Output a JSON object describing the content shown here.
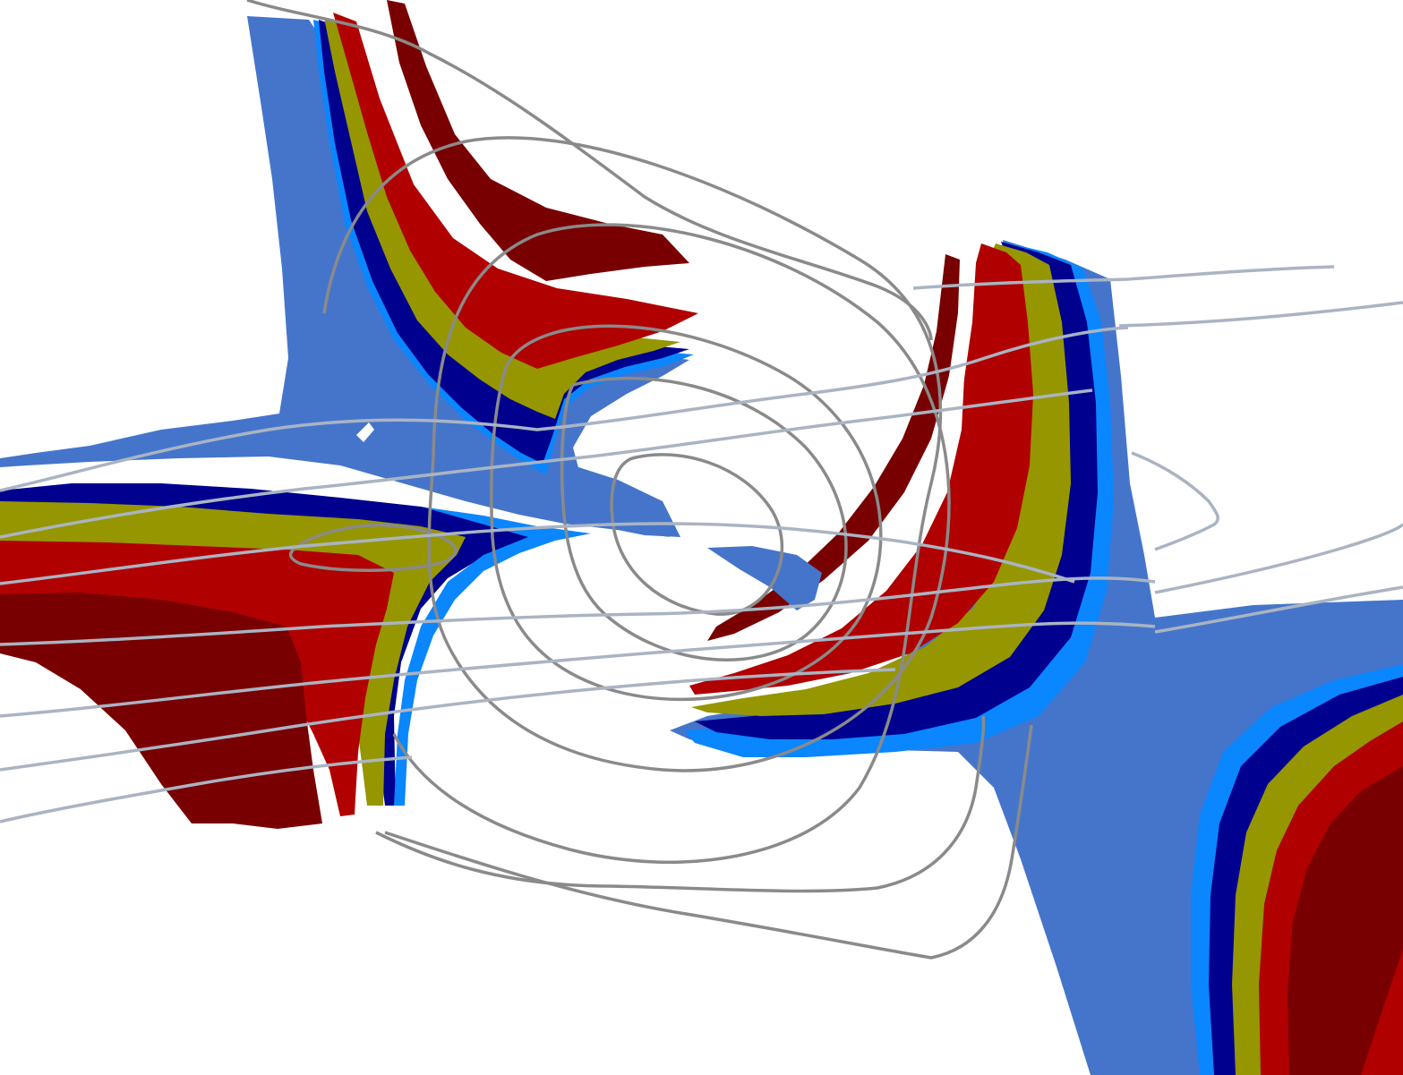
{
  "figure": {
    "description_free": true,
    "background": "#ffffff"
  },
  "palette": {
    "band_outer": "#4575cb",
    "band_light": "#0a86ff",
    "band_navy": "#00008f",
    "band_olive": "#969600",
    "band_red": "#b00000",
    "band_maroon": "#780000",
    "contour_dark": "#8a8a8a",
    "contour_light": "#a9b4c3"
  }
}
